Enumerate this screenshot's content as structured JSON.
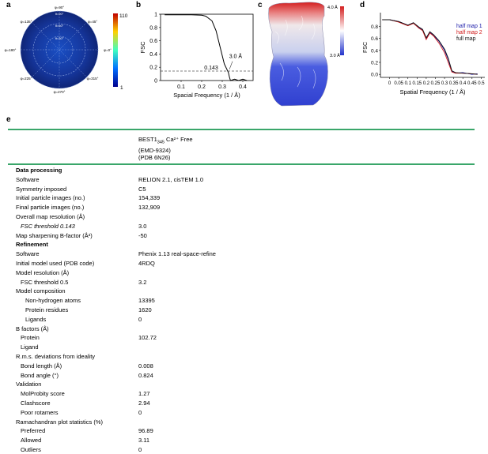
{
  "panels": {
    "a": "a",
    "b": "b",
    "c": "c",
    "d": "d",
    "e": "e"
  },
  "panel_a": {
    "phi_labels": [
      "φ=90°",
      "φ=45°",
      "φ=0°",
      "φ=315°",
      "φ=270°",
      "φ=225°",
      "φ=180°",
      "φ=135°"
    ],
    "theta_labels": [
      "θ=90°",
      "θ=60°",
      "θ=30°"
    ],
    "colorbar_max": "110",
    "colorbar_min": "1"
  },
  "chart_data": [
    {
      "type": "line",
      "panel": "b",
      "ylabel": "FSC",
      "xlabel": "Spacial Frequency (1 / Å)",
      "x_ticks": [
        "0.1",
        "0.2",
        "0.3",
        "0.4"
      ],
      "y_ticks": [
        "0",
        "0.2",
        "0.4",
        "0.6",
        "0.8",
        "1"
      ],
      "xlim": [
        0,
        0.45
      ],
      "ylim": [
        0,
        1.0
      ],
      "threshold_label": "0.143",
      "resolution_label": "3.0 Å",
      "series": [
        {
          "x": [
            0.02,
            0.05,
            0.1,
            0.15,
            0.2,
            0.22,
            0.25,
            0.27,
            0.29,
            0.31,
            0.33,
            0.335,
            0.34,
            0.36,
            0.38,
            0.4,
            0.42
          ],
          "y": [
            0.99,
            0.99,
            0.99,
            0.99,
            0.985,
            0.97,
            0.9,
            0.75,
            0.5,
            0.25,
            0.12,
            0.05,
            0.0,
            0.02,
            0.0,
            0.02,
            0.0
          ]
        }
      ],
      "threshold": 0.143
    },
    {
      "type": "line",
      "panel": "d",
      "ylabel": "FSC",
      "xlabel": "Spatial Frequency (1 / Å)",
      "x_ticks": [
        "0",
        "0.05",
        "0.1",
        "0.15",
        "0.2",
        "0.25",
        "0.3",
        "0.35",
        "0.4",
        "0.45",
        "0.5"
      ],
      "y_ticks": [
        "0.0",
        "0.2",
        "0.4",
        "0.6",
        "0.8"
      ],
      "xlim": [
        -0.05,
        0.52
      ],
      "ylim": [
        -0.05,
        0.95
      ],
      "legend": [
        "half map 1",
        "half map 2",
        "full map"
      ],
      "series": [
        {
          "name": "half map 1",
          "color": "#1a1aa8",
          "x": [
            -0.04,
            0,
            0.05,
            0.1,
            0.13,
            0.16,
            0.18,
            0.2,
            0.22,
            0.24,
            0.27,
            0.3,
            0.32,
            0.34,
            0.36,
            0.4,
            0.45,
            0.48
          ],
          "y": [
            0.91,
            0.91,
            0.88,
            0.82,
            0.86,
            0.78,
            0.74,
            0.6,
            0.7,
            0.65,
            0.55,
            0.4,
            0.25,
            0.05,
            0.02,
            0.03,
            0.0,
            0.01
          ]
        },
        {
          "name": "half map 2",
          "color": "#d11b1b",
          "x": [
            -0.04,
            0,
            0.05,
            0.1,
            0.13,
            0.16,
            0.18,
            0.2,
            0.22,
            0.24,
            0.27,
            0.3,
            0.32,
            0.34,
            0.36,
            0.4,
            0.45,
            0.48
          ],
          "y": [
            0.91,
            0.91,
            0.87,
            0.81,
            0.85,
            0.77,
            0.73,
            0.58,
            0.69,
            0.64,
            0.52,
            0.36,
            0.2,
            0.04,
            0.02,
            0.02,
            0.01,
            0.0
          ]
        },
        {
          "name": "full map",
          "color": "#111111",
          "x": [
            -0.04,
            0,
            0.05,
            0.1,
            0.13,
            0.16,
            0.18,
            0.2,
            0.22,
            0.24,
            0.27,
            0.3,
            0.32,
            0.34,
            0.36,
            0.4,
            0.45,
            0.48
          ],
          "y": [
            0.91,
            0.91,
            0.88,
            0.82,
            0.86,
            0.79,
            0.75,
            0.61,
            0.71,
            0.66,
            0.56,
            0.42,
            0.27,
            0.06,
            0.03,
            0.02,
            0.01,
            0.0
          ]
        }
      ]
    }
  ],
  "panel_c": {
    "scale_max": "4.0 Å",
    "scale_min": "3.0 Å"
  },
  "table": {
    "header_lines": [
      "BEST1",
      "345",
      " Ca²⁺ Free",
      "(EMD-9324)",
      "(PDB 6N26)"
    ],
    "rows": [
      {
        "label": "Data processing",
        "value": "",
        "bold": true,
        "indent": 0
      },
      {
        "label": "Software",
        "value": "RELION 2.1, cisTEM 1.0",
        "indent": 0
      },
      {
        "label": "Symmetry imposed",
        "value": "C5",
        "indent": 0
      },
      {
        "label": "Initial particle images (no.)",
        "value": "154,339",
        "indent": 0
      },
      {
        "label": "Final particle images (no.)",
        "value": "132,909",
        "indent": 0
      },
      {
        "label": "Overall map resolution (Å)",
        "value": "",
        "indent": 0
      },
      {
        "label": "FSC threshold 0.143",
        "value": "3.0",
        "italic": true,
        "indent": 1
      },
      {
        "label": "Map sharpening B-factor (Å²)",
        "value": "-50",
        "indent": 0
      },
      {
        "label": "Refinement",
        "value": "",
        "bold": true,
        "indent": 0
      },
      {
        "label": "Software",
        "value": "Phenix 1.13 real-space-refine",
        "indent": 0
      },
      {
        "label": "Initial model used (PDB code)",
        "value": "4RDQ",
        "indent": 0
      },
      {
        "label": "Model resolution (Å)",
        "value": "",
        "indent": 0
      },
      {
        "label": "FSC threshold 0.5",
        "value": "3.2",
        "indent": 1
      },
      {
        "label": "Model composition",
        "value": "",
        "indent": 0
      },
      {
        "label": "Non-hydrogen atoms",
        "value": "13395",
        "indent": 2
      },
      {
        "label": "Protein residues",
        "value": "1620",
        "indent": 2
      },
      {
        "label": "Ligands",
        "value": "0",
        "indent": 2
      },
      {
        "label": "B factors (Å)",
        "value": "",
        "indent": 0
      },
      {
        "label": "Protein",
        "value": "102.72",
        "indent": 1
      },
      {
        "label": "Ligand",
        "value": "",
        "indent": 1
      },
      {
        "label": "R.m.s. deviations from ideality",
        "value": "",
        "indent": 0
      },
      {
        "label": "Bond length (Å)",
        "value": "0.008",
        "indent": 1
      },
      {
        "label": "Bond angle (°)",
        "value": "0.824",
        "indent": 1
      },
      {
        "label": "Validation",
        "value": "",
        "indent": 0
      },
      {
        "label": "MolProbity score",
        "value": "1.27",
        "indent": 1
      },
      {
        "label": "Clashscore",
        "value": "2.94",
        "indent": 1
      },
      {
        "label": "Poor rotamers",
        "value": "0",
        "indent": 1
      },
      {
        "label": "Ramachandran plot statistics (%)",
        "value": "",
        "indent": 0
      },
      {
        "label": "Preferred",
        "value": "96.89",
        "indent": 1
      },
      {
        "label": "Allowed",
        "value": "3.11",
        "indent": 1
      },
      {
        "label": "Outliers",
        "value": "0",
        "indent": 1
      }
    ]
  }
}
